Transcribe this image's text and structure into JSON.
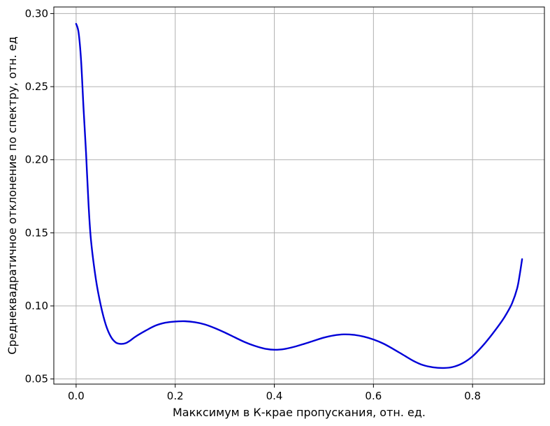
{
  "chart_data": {
    "type": "line",
    "title": "",
    "xlabel": "Макксимум в К-крае пропускания, отн. ед.",
    "ylabel": "Среднеквадратичное отклонение по спектру, отн. ед",
    "xlim": [
      -0.045,
      0.945
    ],
    "ylim": [
      0.0465,
      0.3045
    ],
    "grid": true,
    "x_ticks": [
      0.0,
      0.2,
      0.4,
      0.6,
      0.8
    ],
    "x_tick_labels": [
      "0.0",
      "0.2",
      "0.4",
      "0.6",
      "0.8"
    ],
    "y_ticks": [
      0.05,
      0.1,
      0.15,
      0.2,
      0.25,
      0.3
    ],
    "y_tick_labels": [
      "0.05",
      "0.10",
      "0.15",
      "0.20",
      "0.25",
      "0.30"
    ],
    "series": [
      {
        "color": "#0000d8",
        "x": [
          0.0,
          0.005,
          0.01,
          0.015,
          0.02,
          0.025,
          0.03,
          0.04,
          0.05,
          0.06,
          0.07,
          0.08,
          0.09,
          0.1,
          0.11,
          0.12,
          0.14,
          0.16,
          0.18,
          0.2,
          0.22,
          0.24,
          0.26,
          0.28,
          0.3,
          0.32,
          0.34,
          0.36,
          0.38,
          0.4,
          0.42,
          0.44,
          0.46,
          0.48,
          0.5,
          0.52,
          0.54,
          0.56,
          0.58,
          0.6,
          0.62,
          0.64,
          0.66,
          0.68,
          0.7,
          0.72,
          0.74,
          0.76,
          0.78,
          0.8,
          0.82,
          0.84,
          0.86,
          0.87,
          0.88,
          0.89,
          0.895,
          0.9
        ],
        "y": [
          0.293,
          0.287,
          0.268,
          0.235,
          0.205,
          0.17,
          0.145,
          0.118,
          0.1,
          0.087,
          0.079,
          0.075,
          0.074,
          0.0745,
          0.0765,
          0.079,
          0.083,
          0.0865,
          0.0885,
          0.0893,
          0.0895,
          0.0888,
          0.0873,
          0.0848,
          0.0818,
          0.0785,
          0.0753,
          0.0727,
          0.0708,
          0.07,
          0.0705,
          0.072,
          0.074,
          0.0762,
          0.0783,
          0.0798,
          0.0805,
          0.0802,
          0.079,
          0.077,
          0.0742,
          0.0705,
          0.0665,
          0.0625,
          0.0595,
          0.058,
          0.0575,
          0.0582,
          0.0608,
          0.0655,
          0.0725,
          0.0808,
          0.09,
          0.0955,
          0.102,
          0.112,
          0.121,
          0.132
        ]
      }
    ]
  }
}
